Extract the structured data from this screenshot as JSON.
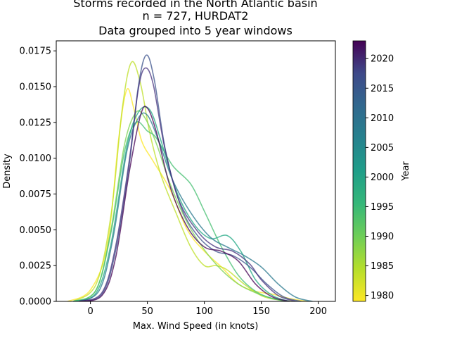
{
  "chart_data": {
    "type": "line",
    "title_lines": [
      "Storms recorded in the North Atlantic basin",
      "n = 727, HURDAT2",
      "Data grouped into 5 year windows"
    ],
    "xlabel": "Max. Wind Speed (in knots)",
    "ylabel": "Density",
    "xlim": [
      -30,
      215
    ],
    "ylim": [
      0,
      0.0182
    ],
    "xticks": [
      0,
      50,
      100,
      150,
      200
    ],
    "xtick_labels": [
      "0",
      "50",
      "100",
      "150",
      "200"
    ],
    "yticks": [
      0,
      0.0025,
      0.005,
      0.0075,
      0.01,
      0.0125,
      0.015,
      0.0175
    ],
    "ytick_labels": [
      "0.0000",
      "0.0025",
      "0.0050",
      "0.0075",
      "0.0100",
      "0.0125",
      "0.0150",
      "0.0175"
    ],
    "grid": false,
    "legend": "none",
    "colorbar": {
      "label": "Year",
      "min": 1979,
      "max": 2023,
      "ticks": [
        1980,
        1985,
        1990,
        1995,
        2000,
        2005,
        2010,
        2015,
        2020
      ],
      "tick_labels": [
        "1980",
        "1985",
        "1990",
        "1995",
        "2000",
        "2005",
        "2010",
        "2015",
        "2020"
      ],
      "colormap": "viridis"
    },
    "series": [
      {
        "year": 1980,
        "color": "#fde725",
        "points": [
          [
            -20,
            0
          ],
          [
            0,
            0.0008
          ],
          [
            15,
            0.004
          ],
          [
            25,
            0.0115
          ],
          [
            32,
            0.0148
          ],
          [
            38,
            0.0135
          ],
          [
            45,
            0.0112
          ],
          [
            55,
            0.0098
          ],
          [
            70,
            0.0078
          ],
          [
            85,
            0.005
          ],
          [
            100,
            0.0035
          ],
          [
            115,
            0.0024
          ],
          [
            130,
            0.0012
          ],
          [
            145,
            0.0007
          ],
          [
            160,
            0.0005
          ],
          [
            175,
            0.0002
          ],
          [
            190,
            0
          ]
        ]
      },
      {
        "year": 1985,
        "color": "#bddf26",
        "points": [
          [
            -15,
            0
          ],
          [
            5,
            0.0012
          ],
          [
            18,
            0.006
          ],
          [
            28,
            0.0135
          ],
          [
            36,
            0.0167
          ],
          [
            44,
            0.0152
          ],
          [
            52,
            0.0118
          ],
          [
            62,
            0.0088
          ],
          [
            75,
            0.0062
          ],
          [
            88,
            0.0038
          ],
          [
            100,
            0.0025
          ],
          [
            110,
            0.0025
          ],
          [
            120,
            0.0022
          ],
          [
            135,
            0.0012
          ],
          [
            150,
            0.0004
          ],
          [
            165,
            0.0001
          ],
          [
            180,
            0
          ]
        ]
      },
      {
        "year": 1990,
        "color": "#7ad151",
        "points": [
          [
            -15,
            0
          ],
          [
            5,
            0.0008
          ],
          [
            18,
            0.005
          ],
          [
            30,
            0.011
          ],
          [
            40,
            0.0132
          ],
          [
            48,
            0.0128
          ],
          [
            58,
            0.011
          ],
          [
            70,
            0.0082
          ],
          [
            85,
            0.0055
          ],
          [
            100,
            0.0036
          ],
          [
            115,
            0.0022
          ],
          [
            130,
            0.0012
          ],
          [
            145,
            0.0006
          ],
          [
            160,
            0.0002
          ],
          [
            175,
            0
          ]
        ]
      },
      {
        "year": 1995,
        "color": "#44bf70",
        "points": [
          [
            -15,
            0
          ],
          [
            5,
            0.0008
          ],
          [
            18,
            0.0048
          ],
          [
            30,
            0.0105
          ],
          [
            40,
            0.0125
          ],
          [
            50,
            0.0119
          ],
          [
            58,
            0.0114
          ],
          [
            72,
            0.0095
          ],
          [
            88,
            0.0082
          ],
          [
            100,
            0.0063
          ],
          [
            115,
            0.0038
          ],
          [
            130,
            0.0018
          ],
          [
            145,
            0.0007
          ],
          [
            160,
            0.0002
          ],
          [
            175,
            0
          ]
        ]
      },
      {
        "year": 2000,
        "color": "#22a884",
        "points": [
          [
            -15,
            0
          ],
          [
            5,
            0.0006
          ],
          [
            18,
            0.004
          ],
          [
            32,
            0.0108
          ],
          [
            42,
            0.0132
          ],
          [
            52,
            0.0134
          ],
          [
            62,
            0.0112
          ],
          [
            75,
            0.0078
          ],
          [
            90,
            0.0055
          ],
          [
            105,
            0.0044
          ],
          [
            120,
            0.0046
          ],
          [
            132,
            0.0035
          ],
          [
            145,
            0.0015
          ],
          [
            160,
            0.0004
          ],
          [
            175,
            0
          ]
        ]
      },
      {
        "year": 2005,
        "color": "#2a788e",
        "points": [
          [
            -10,
            0
          ],
          [
            8,
            0.0008
          ],
          [
            20,
            0.0045
          ],
          [
            32,
            0.0105
          ],
          [
            42,
            0.0128
          ],
          [
            50,
            0.013
          ],
          [
            60,
            0.0112
          ],
          [
            72,
            0.0085
          ],
          [
            88,
            0.0062
          ],
          [
            105,
            0.0045
          ],
          [
            120,
            0.0038
          ],
          [
            135,
            0.0032
          ],
          [
            150,
            0.0024
          ],
          [
            165,
            0.0012
          ],
          [
            180,
            0.0003
          ],
          [
            195,
            0
          ]
        ]
      },
      {
        "year": 2010,
        "color": "#3b528b",
        "points": [
          [
            -10,
            0
          ],
          [
            10,
            0.0005
          ],
          [
            22,
            0.0035
          ],
          [
            34,
            0.0095
          ],
          [
            42,
            0.015
          ],
          [
            49,
            0.0172
          ],
          [
            56,
            0.0155
          ],
          [
            66,
            0.0105
          ],
          [
            80,
            0.0065
          ],
          [
            95,
            0.0045
          ],
          [
            110,
            0.0035
          ],
          [
            125,
            0.0032
          ],
          [
            140,
            0.0024
          ],
          [
            155,
            0.0012
          ],
          [
            170,
            0.0003
          ],
          [
            185,
            0
          ]
        ]
      },
      {
        "year": 2015,
        "color": "#46327e",
        "points": [
          [
            -10,
            0
          ],
          [
            10,
            0.0006
          ],
          [
            22,
            0.0038
          ],
          [
            34,
            0.0098
          ],
          [
            42,
            0.0148
          ],
          [
            48,
            0.0163
          ],
          [
            55,
            0.0152
          ],
          [
            65,
            0.0108
          ],
          [
            78,
            0.007
          ],
          [
            95,
            0.0048
          ],
          [
            110,
            0.0038
          ],
          [
            125,
            0.0035
          ],
          [
            140,
            0.0026
          ],
          [
            150,
            0.0015
          ],
          [
            165,
            0.0004
          ],
          [
            180,
            0
          ]
        ]
      },
      {
        "year": 2020,
        "color": "#440154",
        "points": [
          [
            -10,
            0
          ],
          [
            10,
            0.0004
          ],
          [
            22,
            0.003
          ],
          [
            34,
            0.009
          ],
          [
            44,
            0.013
          ],
          [
            50,
            0.0135
          ],
          [
            58,
            0.0118
          ],
          [
            70,
            0.008
          ],
          [
            85,
            0.0052
          ],
          [
            100,
            0.0038
          ],
          [
            115,
            0.0035
          ],
          [
            130,
            0.0028
          ],
          [
            145,
            0.0012
          ],
          [
            160,
            0.0003
          ],
          [
            175,
            0
          ]
        ]
      }
    ]
  }
}
